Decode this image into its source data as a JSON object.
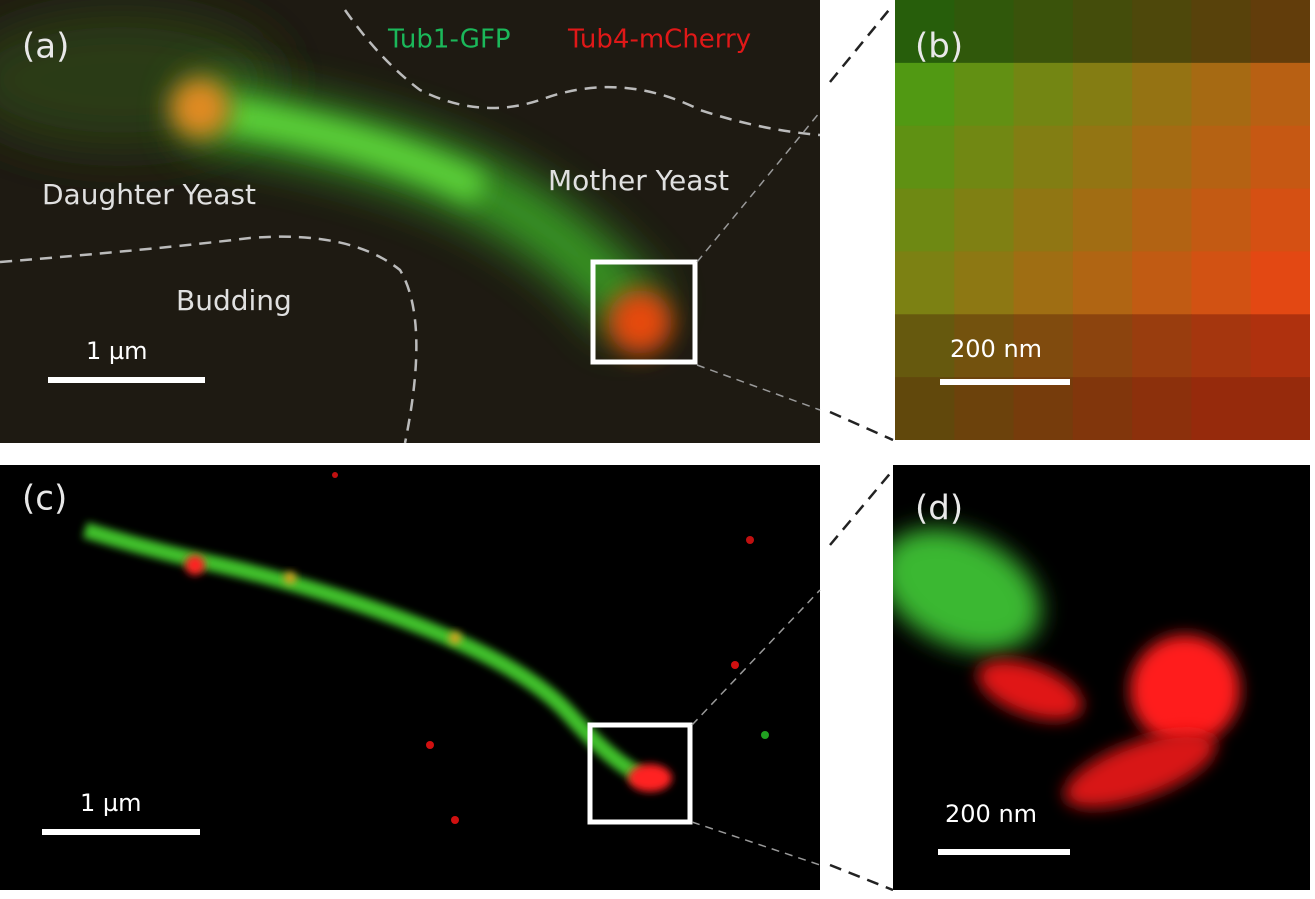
{
  "panels": [
    {
      "label": "(a)",
      "channels": [
        "Tub1-GFP",
        "Tub4-mCherry"
      ],
      "regions": [
        "Daughter Yeast",
        "Mother Yeast",
        "Budding"
      ],
      "scale_bar": "1 µm"
    },
    {
      "label": "(b)",
      "scale_bar": "200 nm"
    },
    {
      "label": "(c)",
      "scale_bar": "1 µm"
    },
    {
      "label": "(d)",
      "scale_bar": "200 nm"
    }
  ]
}
